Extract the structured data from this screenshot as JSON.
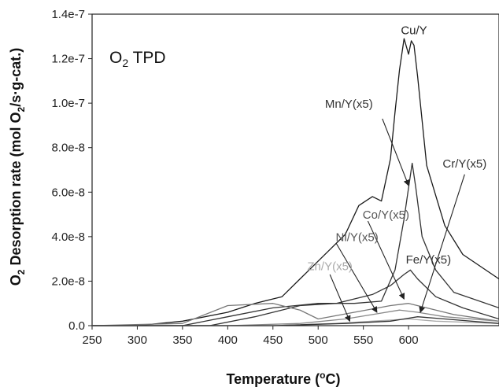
{
  "chart_data": {
    "type": "line",
    "title_main": "O",
    "title_sub": "2",
    "title_rest": " TPD",
    "xlabel_main": "Temperature (",
    "xlabel_sup": "o",
    "xlabel_rest": "C)",
    "ylabel_pre": "O",
    "ylabel_sub1": "2",
    "ylabel_mid": " Desorption rate (mol O",
    "ylabel_sub2": "2",
    "ylabel_post": "/s·g-cat.)",
    "xlim": [
      250,
      700
    ],
    "ylim": [
      0,
      1.4e-07
    ],
    "x_ticks": [
      250,
      300,
      350,
      400,
      450,
      500,
      550,
      600
    ],
    "y_ticks": [
      0,
      2e-08,
      4e-08,
      6e-08,
      8e-08,
      1e-07,
      1.2e-07,
      1.4e-07
    ],
    "x_tick_labels": [
      "250",
      "300",
      "350",
      "400",
      "450",
      "500",
      "550",
      "600"
    ],
    "y_tick_labels": [
      "0.0",
      "2.0e-8",
      "4.0e-8",
      "6.0e-8",
      "8.0e-8",
      "1.0e-7",
      "1.2e-7",
      "1.4e-7"
    ],
    "grid": false,
    "series": [
      {
        "name": "Cu/Y",
        "color": "#1a1a1a",
        "x": [
          250,
          300,
          350,
          400,
          430,
          460,
          490,
          510,
          530,
          545,
          560,
          570,
          580,
          585,
          590,
          595,
          600,
          603,
          606,
          610,
          620,
          640,
          660,
          700
        ],
        "y": [
          0,
          0,
          2e-09,
          6e-09,
          1e-08,
          1.3e-08,
          2.5e-08,
          3.3e-08,
          4.1e-08,
          5.4e-08,
          5.8e-08,
          5.6e-08,
          7.5e-08,
          9.6e-08,
          1.15e-07,
          1.29e-07,
          1.22e-07,
          1.28e-07,
          1.26e-07,
          1.12e-07,
          7.2e-08,
          4.5e-08,
          3.2e-08,
          2.1e-08
        ]
      },
      {
        "name": "Mn/Y(x5)",
        "color": "#333333",
        "x": [
          250,
          350,
          400,
          450,
          500,
          540,
          570,
          585,
          595,
          600,
          604,
          608,
          615,
          630,
          650,
          700
        ],
        "y": [
          0,
          0,
          4e-09,
          8e-09,
          1e-08,
          1e-08,
          1.1e-08,
          2.5e-08,
          4.8e-08,
          6.2e-08,
          7.3e-08,
          6.2e-08,
          4e-08,
          2.5e-08,
          1.5e-08,
          8e-09
        ]
      },
      {
        "name": "Fe/Y(x5)",
        "color": "#333333",
        "x": [
          250,
          380,
          430,
          480,
          520,
          560,
          580,
          595,
          602,
          610,
          630,
          660,
          700
        ],
        "y": [
          0,
          0,
          4e-09,
          9e-09,
          1e-08,
          1.4e-08,
          1.8e-08,
          2.3e-08,
          2.5e-08,
          2.1e-08,
          1.3e-08,
          8e-09,
          3e-09
        ]
      },
      {
        "name": "Co/Y(x5)",
        "color": "#777777",
        "x": [
          250,
          350,
          400,
          450,
          480,
          500,
          540,
          580,
          600,
          620,
          650,
          700
        ],
        "y": [
          0,
          1e-09,
          9e-09,
          1e-08,
          7e-09,
          3e-09,
          6e-09,
          9e-09,
          1e-08,
          8e-09,
          5e-09,
          2e-09
        ]
      },
      {
        "name": "Ni/Y(x5)",
        "color": "#888888",
        "x": [
          250,
          400,
          480,
          530,
          560,
          590,
          610,
          640,
          700
        ],
        "y": [
          0,
          0,
          1e-09,
          3e-09,
          5e-09,
          7e-09,
          6e-09,
          4e-09,
          2e-09
        ]
      },
      {
        "name": "Zn/Y(x5)",
        "color": "#aaaaaa",
        "x": [
          250,
          450,
          520,
          560,
          600,
          630,
          700
        ],
        "y": [
          0,
          0,
          1e-09,
          2e-09,
          3e-09,
          2e-09,
          1e-09
        ]
      },
      {
        "name": "Cr/Y(x5)",
        "color": "#333333",
        "x": [
          250,
          450,
          530,
          580,
          610,
          640,
          700
        ],
        "y": [
          0,
          0,
          1e-09,
          2e-09,
          4e-09,
          3e-09,
          1e-09
        ]
      }
    ],
    "annotations": [
      {
        "label": "Cu/Y",
        "color": "#222222",
        "tx": 606,
        "ty": 1.31e-07,
        "arrow": false
      },
      {
        "label": "Mn/Y(x5)",
        "color": "#333333",
        "tx": 534,
        "ty": 9.8e-08,
        "arrow": true,
        "ax": 571,
        "ay": 9.3e-08,
        "hx": 600,
        "hy": 6.3e-08
      },
      {
        "label": "Cr/Y(x5)",
        "color": "#333333",
        "tx": 662,
        "ty": 7.1e-08,
        "arrow": true,
        "ax": 662,
        "ay": 6.8e-08,
        "hx": 613,
        "hy": 6e-09
      },
      {
        "label": "Co/Y(x5)",
        "color": "#555555",
        "tx": 575,
        "ty": 4.8e-08,
        "arrow": true,
        "ax": 555,
        "ay": 4.7e-08,
        "hx": 595,
        "hy": 1.2e-08
      },
      {
        "label": "Ni/Y(x5)",
        "color": "#555555",
        "tx": 543,
        "ty": 3.8e-08,
        "arrow": true,
        "ax": 520,
        "ay": 3.7e-08,
        "hx": 565,
        "hy": 6e-09
      },
      {
        "label": "Fe/Y(x5)",
        "color": "#333333",
        "tx": 622,
        "ty": 2.8e-08,
        "arrow": false
      },
      {
        "label": "Zn/Y(x5)",
        "color": "#aaaaaa",
        "tx": 513,
        "ty": 2.5e-08,
        "arrow": true,
        "ax": 513,
        "ay": 2.3e-08,
        "hx": 535,
        "hy": 2e-09
      }
    ]
  }
}
